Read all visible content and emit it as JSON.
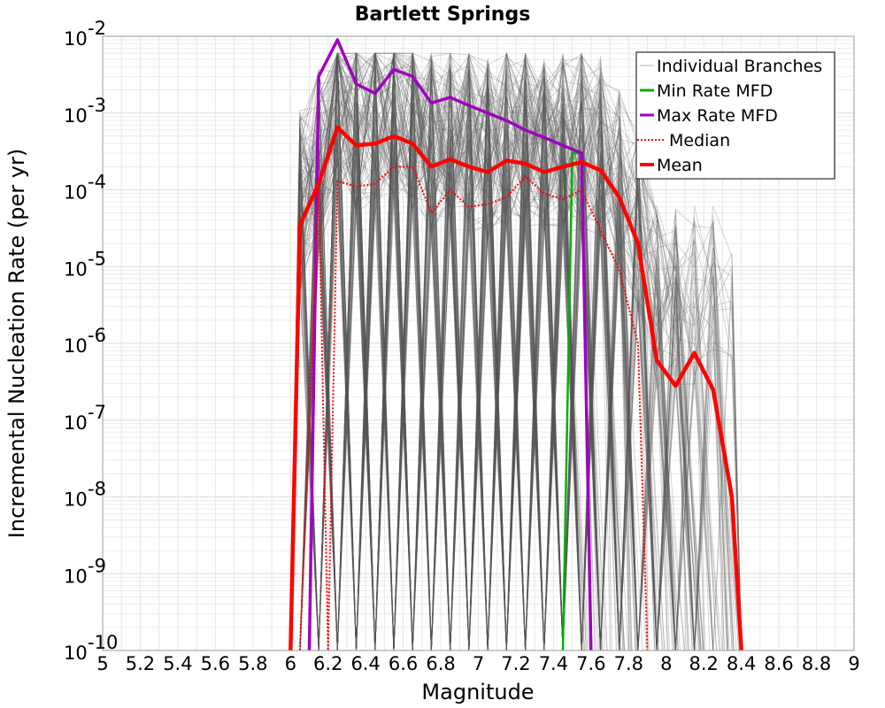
{
  "chart_data": {
    "type": "line",
    "title": "Bartlett Springs",
    "xlabel": "Magnitude",
    "ylabel": "Incremental Nucleation Rate (per yr)",
    "xlim": [
      5,
      9
    ],
    "ylim": [
      1e-10,
      0.01
    ],
    "yscale": "log",
    "grid": true,
    "legend_position": "top-right",
    "x_ticks": [
      "5",
      "5.2",
      "5.4",
      "5.6",
      "5.8",
      "6",
      "6.2",
      "6.4",
      "6.6",
      "6.8",
      "7",
      "7.2",
      "7.4",
      "7.6",
      "7.8",
      "8",
      "8.2",
      "8.4",
      "8.6",
      "8.8",
      "9"
    ],
    "y_ticks": [
      {
        "base": "10",
        "exp": "-10"
      },
      {
        "base": "10",
        "exp": "-9"
      },
      {
        "base": "10",
        "exp": "-8"
      },
      {
        "base": "10",
        "exp": "-7"
      },
      {
        "base": "10",
        "exp": "-6"
      },
      {
        "base": "10",
        "exp": "-5"
      },
      {
        "base": "10",
        "exp": "-4"
      },
      {
        "base": "10",
        "exp": "-3"
      },
      {
        "base": "10",
        "exp": "-2"
      }
    ],
    "legend": [
      {
        "label": "Individual Branches",
        "color": "#b0b0b0",
        "style": "thin"
      },
      {
        "label": "Min Rate MFD",
        "color": "#00b000",
        "style": "solid"
      },
      {
        "label": "Max Rate MFD",
        "color": "#a000c0",
        "style": "solid"
      },
      {
        "label": "Median",
        "color": "#ff0000",
        "style": "dotted"
      },
      {
        "label": "Mean",
        "color": "#ff0000",
        "style": "thick"
      }
    ],
    "series": [
      {
        "name": "Min Rate MFD",
        "color": "#00b000",
        "x": [
          7.45,
          7.5,
          7.55,
          7.6
        ],
        "y": [
          1e-10,
          0.0003,
          0.0003,
          1e-10
        ]
      },
      {
        "name": "Max Rate MFD",
        "color": "#a000c0",
        "x": [
          6.1,
          6.15,
          6.25,
          6.35,
          6.45,
          6.55,
          6.65,
          6.75,
          6.85,
          6.95,
          7.05,
          7.15,
          7.25,
          7.35,
          7.45,
          7.55,
          7.6
        ],
        "y": [
          1e-10,
          0.003,
          0.009,
          0.0024,
          0.0018,
          0.0037,
          0.003,
          0.00135,
          0.0016,
          0.00125,
          0.001,
          0.0008,
          0.0006,
          0.00048,
          0.00038,
          0.0003,
          1e-10
        ]
      },
      {
        "name": "Median",
        "color": "#ff0000",
        "x": [
          6.05,
          6.15,
          6.2,
          6.25,
          6.35,
          6.45,
          6.55,
          6.65,
          6.75,
          6.85,
          6.95,
          7.05,
          7.15,
          7.25,
          7.35,
          7.45,
          7.55,
          7.65,
          7.75,
          7.85,
          7.9
        ],
        "y": [
          1e-10,
          0.00012,
          1e-10,
          0.00013,
          0.00011,
          0.00012,
          0.0002,
          0.0002,
          5e-05,
          0.0001,
          6e-05,
          6.5e-05,
          8e-05,
          0.00015,
          9e-05,
          7.5e-05,
          0.0001,
          3e-05,
          9e-06,
          1e-06,
          1e-10
        ]
      },
      {
        "name": "Mean",
        "color": "#ff0000",
        "x": [
          6.0,
          6.05,
          6.15,
          6.25,
          6.35,
          6.45,
          6.55,
          6.65,
          6.75,
          6.85,
          6.95,
          7.05,
          7.15,
          7.25,
          7.35,
          7.45,
          7.55,
          7.65,
          7.75,
          7.85,
          7.95,
          8.05,
          8.15,
          8.25,
          8.35,
          8.4
        ],
        "y": [
          1e-10,
          3.5e-05,
          0.00012,
          0.00065,
          0.00038,
          0.0004,
          0.0005,
          0.0004,
          0.0002,
          0.00025,
          0.0002,
          0.00017,
          0.00024,
          0.00022,
          0.00017,
          0.0002,
          0.00023,
          0.00018,
          8e-05,
          2e-05,
          6e-07,
          2.8e-07,
          7.5e-07,
          2.5e-07,
          1e-08,
          1e-10
        ]
      }
    ]
  }
}
